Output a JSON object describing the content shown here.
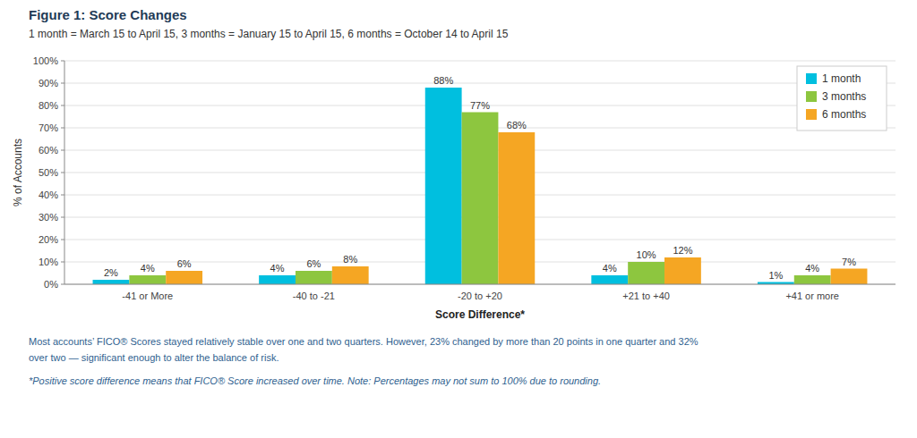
{
  "chart_data": {
    "type": "bar",
    "title": "Figure 1: Score Changes",
    "subtitle": "1 month = March 15 to April 15, 3 months = January 15 to April 15, 6 months = October 14 to April 15",
    "categories": [
      "-41 or More",
      "-40 to -21",
      "-20 to +20",
      "+21 to +40",
      "+41 or more"
    ],
    "series": [
      {
        "name": "1 month",
        "color": "#00BFDF",
        "values": [
          2,
          4,
          88,
          4,
          1
        ],
        "value_labels": [
          "2%",
          "4%",
          "88%",
          "4%",
          "1%"
        ]
      },
      {
        "name": "3 months",
        "color": "#8DC63F",
        "values": [
          4,
          6,
          77,
          10,
          4
        ],
        "value_labels": [
          "4%",
          "6%",
          "77%",
          "10%",
          "4%"
        ]
      },
      {
        "name": "6 months",
        "color": "#F5A623",
        "values": [
          6,
          8,
          68,
          12,
          7
        ],
        "value_labels": [
          "6%",
          "8%",
          "68%",
          "12%",
          "7%"
        ]
      }
    ],
    "xlabel": "Score Difference*",
    "ylabel": "% of Accounts",
    "ylim": [
      0,
      100
    ],
    "yticks": [
      {
        "value": 0,
        "label": "0%"
      },
      {
        "value": 10,
        "label": "10%"
      },
      {
        "value": 20,
        "label": "20%"
      },
      {
        "value": 30,
        "label": "30%"
      },
      {
        "value": 40,
        "label": "40%"
      },
      {
        "value": 50,
        "label": "50%"
      },
      {
        "value": 60,
        "label": "60%"
      },
      {
        "value": 70,
        "label": "70%"
      },
      {
        "value": 80,
        "label": "80%"
      },
      {
        "value": 90,
        "label": "90%"
      },
      {
        "value": 100,
        "label": "100%"
      }
    ],
    "grid": true,
    "legend": "upper right",
    "data_labels": true,
    "annotations": [
      "Most accounts’ FICO® Scores stayed relatively stable over one and two quarters. However, 23% changed by more than 20 points in one quarter and 32%",
      "over two — significant enough to alter the balance of risk.",
      "*Positive score difference means that FICO® Score increased over time. Note: Percentages may not sum to 100% due to rounding."
    ]
  }
}
